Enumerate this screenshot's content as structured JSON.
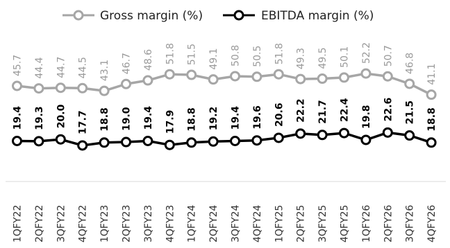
{
  "chart_data": {
    "type": "line",
    "title": "",
    "xlabel": "",
    "ylabel": "",
    "categories": [
      "1QFY22",
      "2QFY22",
      "3QFY22",
      "4QFY22",
      "1QFY23",
      "2QFY23",
      "3QFY23",
      "4QFY23",
      "1QFY24",
      "2QFY24",
      "3QFY24",
      "4QFY24",
      "1QFY25",
      "2QFY25",
      "3QFY25",
      "4QFY25",
      "1QFY26",
      "2QFY26",
      "3QFY26",
      "4QFY26"
    ],
    "series": [
      {
        "name": "Gross margin (%)",
        "color": "#a6a6a6",
        "values": [
          45.7,
          44.4,
          44.7,
          44.5,
          43.1,
          46.7,
          48.6,
          51.8,
          51.5,
          49.1,
          50.8,
          50.5,
          51.8,
          49.3,
          49.5,
          50.1,
          52.2,
          50.7,
          46.8,
          41.1
        ],
        "labels": [
          "45.7",
          "44.4",
          "44.7",
          "44.5",
          "43.1",
          "46.7",
          "48.6",
          "51.8",
          "51.5",
          "49.1",
          "50.8",
          "50.5",
          "51.8",
          "49.3",
          "49.5",
          "50.1",
          "52.2",
          "50.7",
          "46.8",
          "41.1"
        ]
      },
      {
        "name": "EBITDA margin (%)",
        "color": "#000000",
        "values": [
          19.4,
          19.3,
          20.0,
          17.7,
          18.8,
          19.0,
          19.4,
          17.9,
          18.8,
          19.2,
          19.4,
          19.6,
          20.6,
          22.2,
          21.7,
          22.4,
          19.8,
          22.6,
          21.5,
          18.8
        ],
        "labels": [
          "19.4",
          "19.3",
          "20.0",
          "17.7",
          "18.8",
          "19.0",
          "19.4",
          "17.9",
          "18.8",
          "19.2",
          "19.4",
          "19.6",
          "20.6",
          "22.2",
          "21.7",
          "22.4",
          "19.8",
          "22.6",
          "21.5",
          "18.8"
        ]
      }
    ],
    "legend_position": "top",
    "grid": false
  }
}
